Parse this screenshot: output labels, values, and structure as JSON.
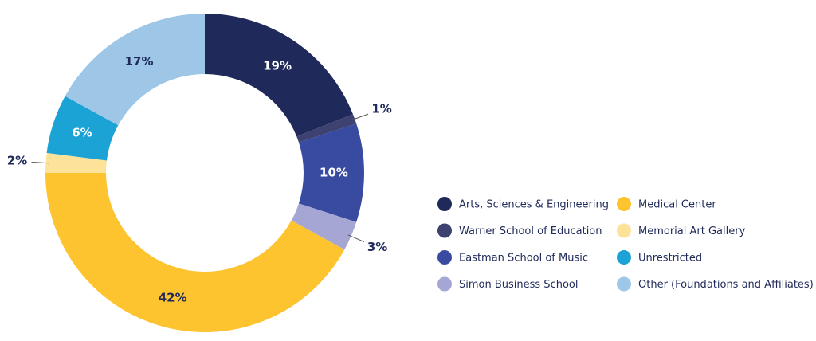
{
  "chart_data": {
    "type": "pie",
    "categories": [
      "Arts, Sciences & Engineering",
      "Warner School of Education",
      "Eastman School of Music",
      "Simon Business School",
      "Medical Center",
      "Memorial Art Gallery",
      "Unrestricted",
      "Other (Foundations and Affiliates)"
    ],
    "values": [
      19,
      1,
      10,
      3,
      42,
      2,
      6,
      17
    ],
    "value_labels": [
      "19%",
      "1%",
      "10%",
      "3%",
      "42%",
      "2%",
      "6%",
      "17%"
    ],
    "colors": [
      "#1f2a5a",
      "#3e4270",
      "#394ba0",
      "#a5a6d3",
      "#fec42f",
      "#fde39a",
      "#1ba3d6",
      "#9dc6e7"
    ]
  }
}
